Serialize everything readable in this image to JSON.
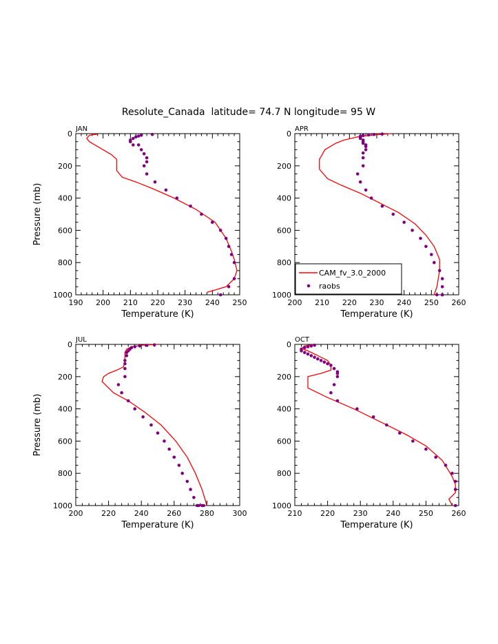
{
  "figure_title": "Resolute_Canada  latitude= 74.7 N longitude= 95 W",
  "colors": {
    "model": "#ff0000",
    "obs": "#800080",
    "axis": "#000000"
  },
  "legend": {
    "model_label": "CAM_fv_3.0_2000",
    "obs_label": "raobs"
  },
  "chart_data": [
    {
      "type": "line",
      "title": "JAN",
      "xlabel": "Temperature (K)",
      "ylabel": "Pressure (mb)",
      "xlim": [
        190,
        250
      ],
      "ylim": [
        0,
        1000
      ],
      "y_inverted": true,
      "xticks": [
        190,
        200,
        210,
        220,
        230,
        240,
        250
      ],
      "yticks": [
        0,
        200,
        400,
        600,
        800,
        1000
      ],
      "series": [
        {
          "name": "CAM_fv_3.0_2000",
          "kind": "line",
          "x": [
            198,
            195,
            194,
            195,
            197,
            200,
            203,
            205,
            205,
            205,
            207,
            212,
            218,
            226,
            234,
            241,
            245,
            247,
            248,
            249,
            248,
            245,
            238
          ],
          "y": [
            3,
            10,
            30,
            50,
            70,
            100,
            130,
            160,
            200,
            230,
            270,
            300,
            340,
            400,
            470,
            550,
            650,
            730,
            780,
            850,
            900,
            950,
            985
          ]
        },
        {
          "name": "raobs",
          "kind": "scatter",
          "x": [
            218,
            214,
            213,
            212,
            211,
            210,
            210,
            211,
            213,
            214,
            215,
            216,
            216,
            215,
            216,
            219,
            223,
            227,
            232,
            236,
            240,
            243,
            245,
            246,
            247,
            248,
            248,
            246,
            243
          ],
          "y": [
            5,
            10,
            15,
            20,
            30,
            40,
            50,
            70,
            70,
            100,
            125,
            150,
            175,
            200,
            250,
            300,
            350,
            400,
            450,
            500,
            550,
            600,
            650,
            700,
            750,
            800,
            900,
            950,
            1000
          ]
        }
      ]
    },
    {
      "type": "line",
      "title": "APR",
      "xlabel": "Temperature (K)",
      "ylabel": "",
      "xlim": [
        200,
        260
      ],
      "ylim": [
        0,
        1000
      ],
      "y_inverted": true,
      "xticks": [
        200,
        210,
        220,
        230,
        240,
        250,
        260
      ],
      "yticks": [
        0,
        200,
        400,
        600,
        800,
        1000
      ],
      "legend_position": "bottom-left",
      "series": [
        {
          "name": "CAM_fv_3.0_2000",
          "kind": "line",
          "x": [
            235,
            228,
            223,
            218,
            215,
            213,
            211,
            210,
            209,
            209,
            212,
            217,
            224,
            231,
            238,
            244,
            248,
            251,
            253,
            253,
            252,
            251
          ],
          "y": [
            0,
            10,
            20,
            40,
            60,
            80,
            100,
            130,
            160,
            220,
            280,
            320,
            370,
            430,
            490,
            560,
            630,
            700,
            780,
            850,
            950,
            1000
          ]
        },
        {
          "name": "raobs",
          "kind": "scatter",
          "x": [
            232,
            229,
            227,
            225,
            224,
            224,
            224,
            225,
            225,
            225,
            226,
            226,
            226,
            225,
            225,
            225,
            223,
            224,
            226,
            228,
            232,
            236,
            240,
            243,
            246,
            248,
            250,
            251,
            253,
            254,
            254,
            254,
            254,
            252
          ],
          "y": [
            2,
            5,
            8,
            12,
            16,
            20,
            30,
            40,
            50,
            60,
            70,
            80,
            100,
            120,
            150,
            200,
            250,
            300,
            350,
            400,
            450,
            500,
            550,
            600,
            650,
            700,
            750,
            800,
            850,
            900,
            950,
            1000,
            1000,
            1000
          ]
        }
      ]
    },
    {
      "type": "line",
      "title": "JUL",
      "xlabel": "Temperature (K)",
      "ylabel": "Pressure (mb)",
      "xlim": [
        200,
        300
      ],
      "ylim": [
        0,
        1000
      ],
      "y_inverted": true,
      "xticks": [
        200,
        220,
        240,
        260,
        280,
        300
      ],
      "yticks": [
        0,
        200,
        400,
        600,
        800,
        1000
      ],
      "series": [
        {
          "name": "CAM_fv_3.0_2000",
          "kind": "line",
          "x": [
            250,
            240,
            234,
            231,
            230,
            230,
            230,
            229,
            225,
            220,
            217,
            216,
            223,
            232,
            242,
            252,
            261,
            268,
            273,
            277,
            280
          ],
          "y": [
            0,
            5,
            15,
            30,
            50,
            80,
            110,
            140,
            160,
            180,
            200,
            230,
            300,
            350,
            420,
            500,
            600,
            700,
            800,
            900,
            1000
          ]
        },
        {
          "name": "raobs",
          "kind": "scatter",
          "x": [
            248,
            243,
            239,
            236,
            234,
            233,
            232,
            231,
            231,
            230,
            230,
            230,
            230,
            226,
            228,
            232,
            236,
            241,
            246,
            250,
            254,
            257,
            260,
            263,
            265,
            268,
            270,
            272,
            274,
            275,
            277,
            278
          ],
          "y": [
            3,
            6,
            10,
            15,
            20,
            30,
            40,
            50,
            70,
            100,
            120,
            150,
            200,
            250,
            300,
            350,
            400,
            450,
            500,
            550,
            600,
            650,
            700,
            750,
            800,
            850,
            900,
            950,
            1000,
            1000,
            1000,
            1000
          ]
        }
      ]
    },
    {
      "type": "line",
      "title": "OCT",
      "xlabel": "Temperature (K)",
      "ylabel": "",
      "xlim": [
        210,
        260
      ],
      "ylim": [
        0,
        1000
      ],
      "y_inverted": true,
      "xticks": [
        210,
        220,
        230,
        240,
        250,
        260
      ],
      "yticks": [
        0,
        200,
        400,
        600,
        800,
        1000
      ],
      "series": [
        {
          "name": "CAM_fv_3.0_2000",
          "kind": "line",
          "x": [
            216,
            213,
            212,
            214,
            216,
            218,
            220,
            221,
            221,
            218,
            214,
            214,
            214,
            220,
            228,
            236,
            244,
            250,
            255,
            258,
            259,
            259,
            257,
            258
          ],
          "y": [
            0,
            10,
            25,
            40,
            60,
            80,
            100,
            130,
            160,
            180,
            200,
            230,
            270,
            330,
            400,
            480,
            560,
            630,
            720,
            820,
            870,
            920,
            960,
            1000
          ]
        },
        {
          "name": "raobs",
          "kind": "scatter",
          "x": [
            216,
            215,
            214,
            213,
            212,
            212,
            213,
            214,
            215,
            216,
            217,
            218,
            219,
            220,
            221,
            222,
            223,
            223,
            223,
            222,
            221,
            223,
            229,
            234,
            238,
            242,
            246,
            250,
            253,
            256,
            258,
            259,
            259,
            259
          ],
          "y": [
            5,
            10,
            15,
            20,
            30,
            40,
            50,
            60,
            70,
            80,
            90,
            100,
            110,
            120,
            130,
            150,
            170,
            180,
            200,
            250,
            300,
            350,
            400,
            450,
            500,
            550,
            600,
            650,
            700,
            750,
            800,
            850,
            900,
            1000
          ]
        }
      ]
    }
  ]
}
